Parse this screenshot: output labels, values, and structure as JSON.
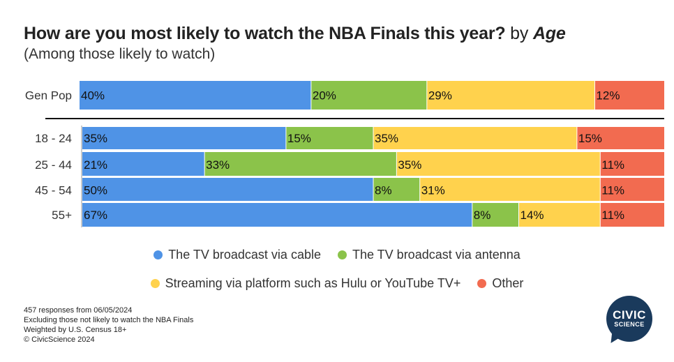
{
  "title": {
    "main": "How are you most likely to watch the NBA Finals this year?",
    "by": "by",
    "dimension": "Age"
  },
  "subtitle": "(Among those likely to watch)",
  "chart_data": {
    "type": "bar",
    "orientation": "horizontal",
    "stacked": true,
    "categories": [
      "Gen Pop",
      "18 - 24",
      "25 - 44",
      "45 - 54",
      "55+"
    ],
    "series": [
      {
        "name": "The TV broadcast via cable",
        "color": "#4f93e6",
        "values": [
          40,
          35,
          21,
          50,
          67
        ],
        "labels": [
          "40%",
          "35%",
          "21%",
          "50%",
          "67%"
        ]
      },
      {
        "name": "The TV broadcast via antenna",
        "color": "#8bc34a",
        "values": [
          20,
          15,
          33,
          8,
          8
        ],
        "labels": [
          "20%",
          "15%",
          "33%",
          "8%",
          "8%"
        ]
      },
      {
        "name": "Streaming via platform such as Hulu or YouTube TV+",
        "color": "#ffd24d",
        "values": [
          29,
          35,
          35,
          31,
          14
        ],
        "labels": [
          "29%",
          "35%",
          "35%",
          "31%",
          "14%"
        ]
      },
      {
        "name": "Other",
        "color": "#f26b50",
        "values": [
          12,
          15,
          11,
          11,
          11
        ],
        "labels": [
          "12%",
          "15%",
          "11%",
          "11%",
          "11%"
        ]
      }
    ],
    "legend_position": "bottom",
    "grid": false
  },
  "footnotes": [
    "457 responses from 06/05/2024",
    "Excluding those not likely to watch the NBA Finals",
    "Weighted by U.S. Census 18+",
    "© CivicScience 2024"
  ],
  "logo": {
    "line1": "CIVIC",
    "line2": "SCIENCE"
  }
}
